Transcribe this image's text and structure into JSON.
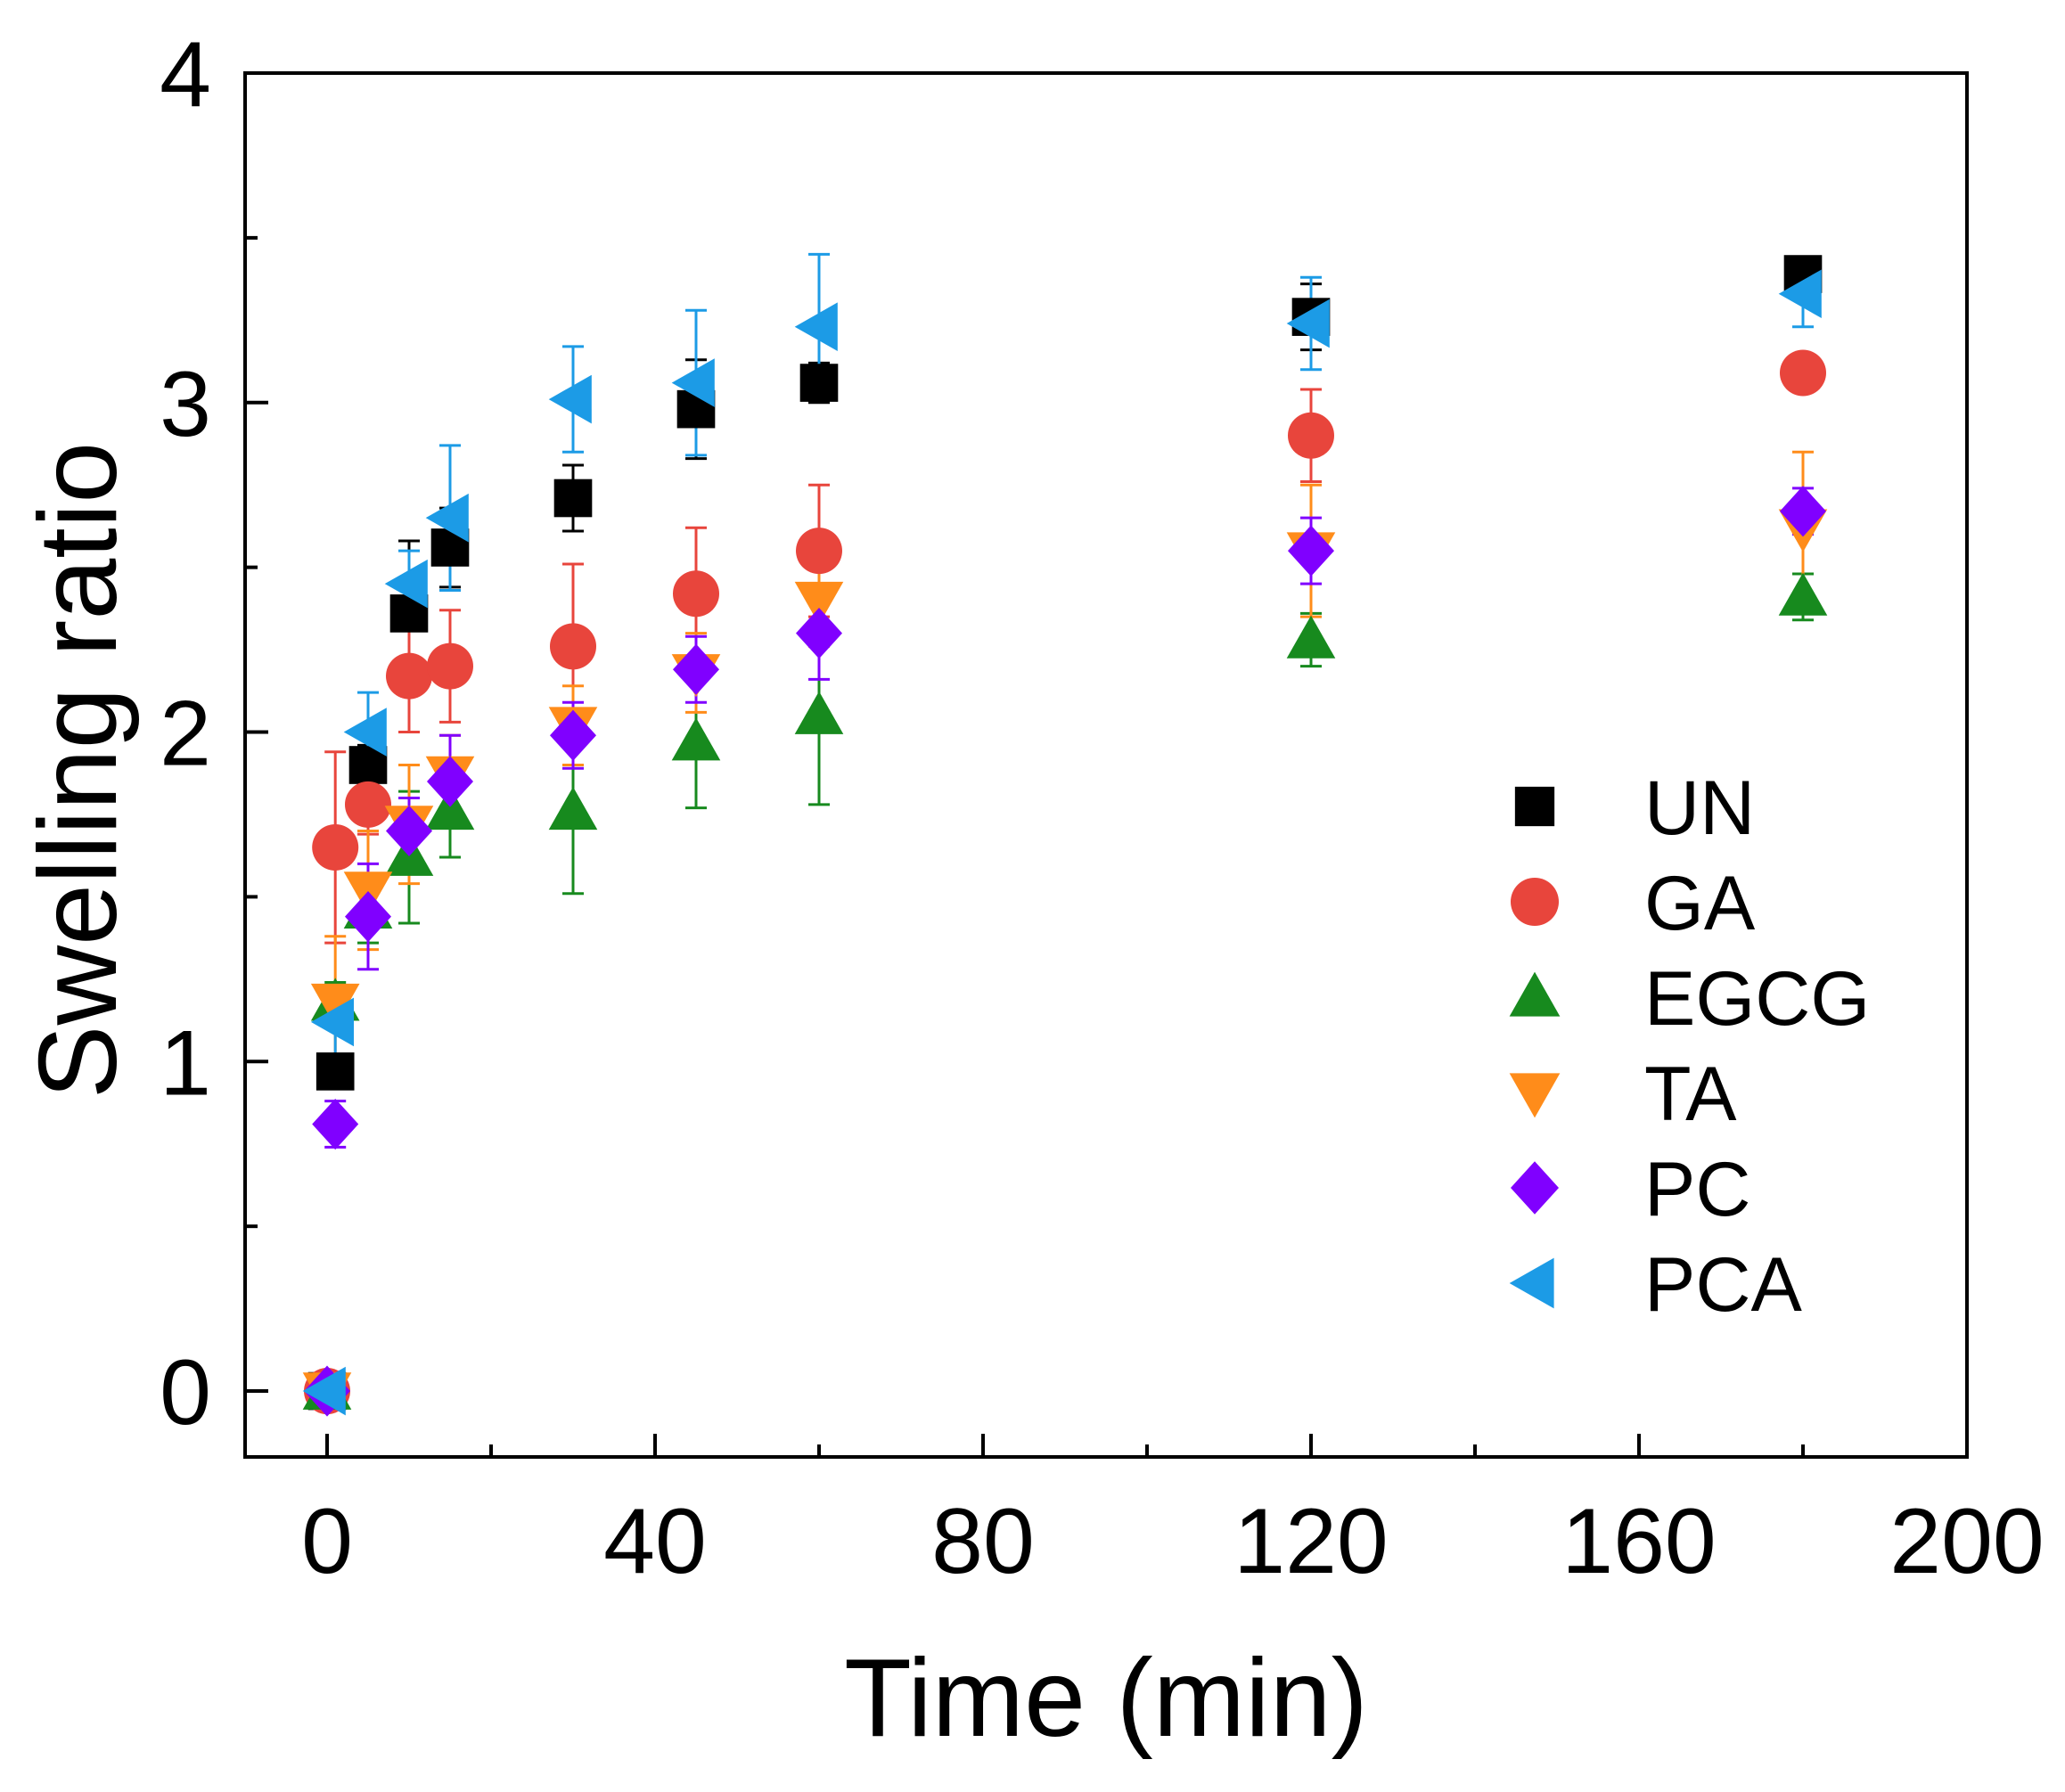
{
  "chart_data": {
    "type": "scatter",
    "title": "",
    "xlabel": "Time (min)",
    "ylabel": "Swelling ratio",
    "xlim": [
      -10,
      200
    ],
    "ylim": [
      -0.2,
      4
    ],
    "xticks": [
      0,
      40,
      80,
      120,
      160,
      200
    ],
    "yticks": [
      0,
      1,
      2,
      3,
      4
    ],
    "x_minor_step": 20,
    "y_minor_step": 0.5,
    "grid": false,
    "legend_position": "right-center",
    "series": [
      {
        "name": "UN",
        "marker": "square",
        "color": "#000000",
        "x": [
          0,
          1,
          5,
          10,
          15,
          30,
          45,
          60,
          120,
          180
        ],
        "y": [
          0,
          0.97,
          1.9,
          2.36,
          2.56,
          2.71,
          2.98,
          3.06,
          3.26,
          3.39
        ],
        "err": [
          0.02,
          0.04,
          0.06,
          0.22,
          0.12,
          0.1,
          0.15,
          0.06,
          0.1,
          0.05
        ]
      },
      {
        "name": "GA",
        "marker": "circle",
        "color": "#e8453c",
        "x": [
          0,
          1,
          5,
          10,
          15,
          30,
          45,
          60,
          120,
          180
        ],
        "y": [
          0,
          1.65,
          1.78,
          2.17,
          2.2,
          2.26,
          2.42,
          2.55,
          2.9,
          3.09
        ],
        "err": [
          0.02,
          0.29,
          0.09,
          0.17,
          0.17,
          0.25,
          0.2,
          0.2,
          0.14,
          0.05
        ]
      },
      {
        "name": "EGCG",
        "marker": "triangle-up",
        "color": "#178a1e",
        "x": [
          0,
          1,
          5,
          10,
          15,
          30,
          45,
          60,
          120,
          180
        ],
        "y": [
          0,
          1.18,
          1.46,
          1.62,
          1.76,
          1.76,
          1.97,
          2.05,
          2.28,
          2.41
        ],
        "err": [
          0.02,
          0.06,
          0.1,
          0.2,
          0.14,
          0.25,
          0.2,
          0.27,
          0.08,
          0.07
        ]
      },
      {
        "name": "TA",
        "marker": "triangle-down",
        "color": "#ff8c1a",
        "x": [
          0,
          1,
          5,
          10,
          15,
          30,
          45,
          60,
          120,
          180
        ],
        "y": [
          0,
          1.18,
          1.52,
          1.72,
          1.87,
          2.02,
          2.18,
          2.4,
          2.55,
          2.62
        ],
        "err": [
          0.02,
          0.2,
          0.18,
          0.18,
          0.12,
          0.12,
          0.12,
          0.14,
          0.2,
          0.23
        ]
      },
      {
        "name": "PC",
        "marker": "diamond",
        "color": "#8000ff",
        "x": [
          0,
          1,
          5,
          10,
          15,
          30,
          45,
          60,
          120,
          180
        ],
        "y": [
          0,
          0.81,
          1.44,
          1.7,
          1.85,
          1.99,
          2.19,
          2.3,
          2.55,
          2.67
        ],
        "err": [
          0.02,
          0.07,
          0.16,
          0.1,
          0.14,
          0.1,
          0.1,
          0.14,
          0.1,
          0.07
        ]
      },
      {
        "name": "PCA",
        "marker": "triangle-left",
        "color": "#1c9be6",
        "x": [
          0,
          1,
          5,
          10,
          15,
          30,
          45,
          60,
          120,
          180
        ],
        "y": [
          0,
          1.12,
          2.0,
          2.45,
          2.65,
          3.01,
          3.06,
          3.23,
          3.24,
          3.33
        ],
        "err": [
          0.02,
          0.1,
          0.12,
          0.1,
          0.22,
          0.16,
          0.22,
          0.22,
          0.14,
          0.1
        ]
      }
    ]
  }
}
